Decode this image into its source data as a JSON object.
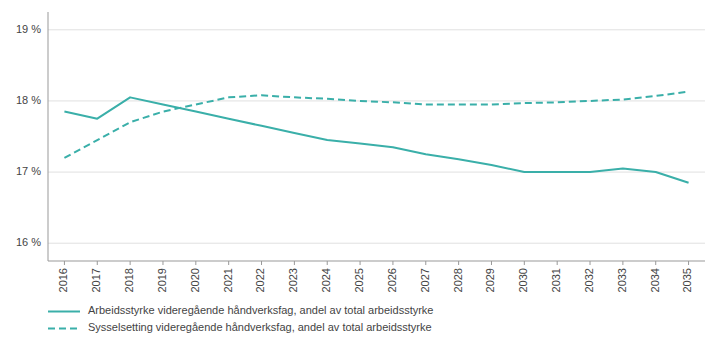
{
  "chart_data": {
    "type": "line",
    "x": [
      2016,
      2017,
      2018,
      2019,
      2020,
      2021,
      2022,
      2023,
      2024,
      2025,
      2026,
      2027,
      2028,
      2029,
      2030,
      2031,
      2032,
      2033,
      2034,
      2035
    ],
    "series": [
      {
        "name": "Arbeidsstyrke videregående håndverksfag, andel av total arbeidsstyrke",
        "color": "#3aafa9",
        "line_style": "solid",
        "values": [
          17.85,
          17.75,
          18.05,
          17.95,
          17.85,
          17.75,
          17.65,
          17.55,
          17.45,
          17.4,
          17.35,
          17.25,
          17.18,
          17.1,
          17.0,
          17.0,
          17.0,
          17.05,
          17.0,
          16.85
        ]
      },
      {
        "name": "Sysselsetting videregående håndverksfag, andel av total arbeidsstyrke",
        "color": "#3aafa9",
        "line_style": "dashed",
        "values": [
          17.2,
          17.45,
          17.7,
          17.85,
          17.95,
          18.05,
          18.08,
          18.05,
          18.03,
          18.0,
          17.98,
          17.95,
          17.95,
          17.95,
          17.97,
          17.98,
          18.0,
          18.02,
          18.07,
          18.13
        ]
      }
    ],
    "xlim": [
      2015.5,
      2035.5
    ],
    "xticks": [
      2016,
      2017,
      2018,
      2019,
      2020,
      2021,
      2022,
      2023,
      2024,
      2025,
      2026,
      2027,
      2028,
      2029,
      2030,
      2031,
      2032,
      2033,
      2034,
      2035
    ],
    "ylim": [
      15.75,
      19.25
    ],
    "yticks": [
      {
        "value": 16.0,
        "label": "16 %"
      },
      {
        "value": 17.0,
        "label": "17 %"
      },
      {
        "value": 18.0,
        "label": "18 %"
      },
      {
        "value": 19.0,
        "label": "19 %"
      }
    ],
    "grid": true,
    "legend": "bottom-left"
  }
}
